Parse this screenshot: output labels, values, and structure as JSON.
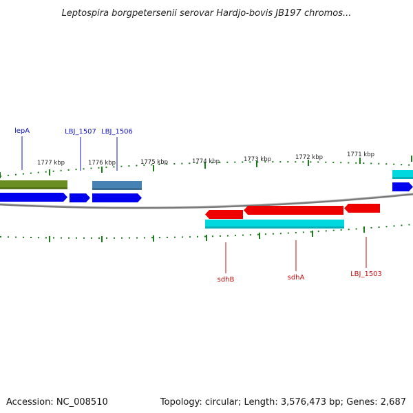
{
  "title": "Leptospira borgpetersenii serovar Hardjo-bovis JB197 chromos...",
  "footer": {
    "accession": "Accession: NC_008510",
    "summary": "Topology: circular; Length: 3,576,473 bp; Genes: 2,687"
  },
  "colors": {
    "backbone": "#808080",
    "tick": "#1a7a1a",
    "label_forward": "#1010c0",
    "label_reverse": "#c01010",
    "olive": "#6b8e23",
    "steelblue": "#4682b4",
    "blue": "#0000ee",
    "red": "#ee0000",
    "cyan": "#00d8e0"
  },
  "scale": {
    "labels": [
      "1777 kbp",
      "1776 kbp",
      "1775 kbp",
      "1774 kbp",
      "1773 kbp",
      "1772 kbp",
      "1771 kbp"
    ]
  },
  "labels_forward": [
    "lepA",
    "LBJ_1507",
    "LBJ_1506"
  ],
  "labels_reverse": [
    "sdhB",
    "sdhA",
    "LBJ_1503"
  ]
}
